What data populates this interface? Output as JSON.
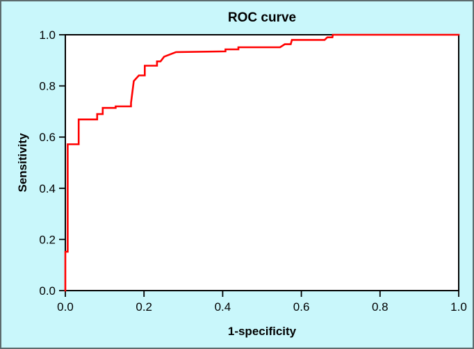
{
  "figure": {
    "background_color": "#c9f7fb",
    "border_color": "#5d6b6d",
    "plot_background_color": "#ffffff",
    "frame_color": "#000000"
  },
  "chart_data": {
    "type": "line",
    "subtype": "roc-curve",
    "title": "ROC curve",
    "xlabel": "1-specificity",
    "ylabel": "Sensitivity",
    "xlim": [
      0.0,
      1.0
    ],
    "ylim": [
      0.0,
      1.0
    ],
    "grid": false,
    "legend_position": "none",
    "xticks": [
      0.0,
      0.2,
      0.4,
      0.6,
      0.8,
      1.0
    ],
    "yticks": [
      0.0,
      0.2,
      0.4,
      0.6,
      0.8,
      1.0
    ],
    "xtick_labels": [
      "0.0",
      "0.2",
      "0.4",
      "0.6",
      "0.8",
      "1.0"
    ],
    "ytick_labels": [
      "0.0",
      "0.2",
      "0.4",
      "0.6",
      "0.8",
      "1.0"
    ],
    "series": [
      {
        "name": "ROC",
        "color": "#ff0000",
        "line_width": 2.6,
        "points": [
          [
            0.0,
            0.0
          ],
          [
            0.0,
            0.152
          ],
          [
            0.006,
            0.152
          ],
          [
            0.006,
            0.572
          ],
          [
            0.034,
            0.572
          ],
          [
            0.034,
            0.669
          ],
          [
            0.081,
            0.669
          ],
          [
            0.081,
            0.69
          ],
          [
            0.095,
            0.69
          ],
          [
            0.095,
            0.714
          ],
          [
            0.128,
            0.714
          ],
          [
            0.128,
            0.72
          ],
          [
            0.167,
            0.72
          ],
          [
            0.167,
            0.734
          ],
          [
            0.174,
            0.819
          ],
          [
            0.187,
            0.841
          ],
          [
            0.202,
            0.841
          ],
          [
            0.202,
            0.879
          ],
          [
            0.233,
            0.879
          ],
          [
            0.233,
            0.896
          ],
          [
            0.242,
            0.896
          ],
          [
            0.251,
            0.914
          ],
          [
            0.281,
            0.932
          ],
          [
            0.407,
            0.935
          ],
          [
            0.407,
            0.943
          ],
          [
            0.44,
            0.943
          ],
          [
            0.44,
            0.951
          ],
          [
            0.546,
            0.951
          ],
          [
            0.558,
            0.963
          ],
          [
            0.573,
            0.963
          ],
          [
            0.576,
            0.98
          ],
          [
            0.659,
            0.98
          ],
          [
            0.666,
            0.99
          ],
          [
            0.679,
            0.99
          ],
          [
            0.68,
            1.0
          ],
          [
            1.0,
            1.0
          ]
        ]
      }
    ]
  }
}
